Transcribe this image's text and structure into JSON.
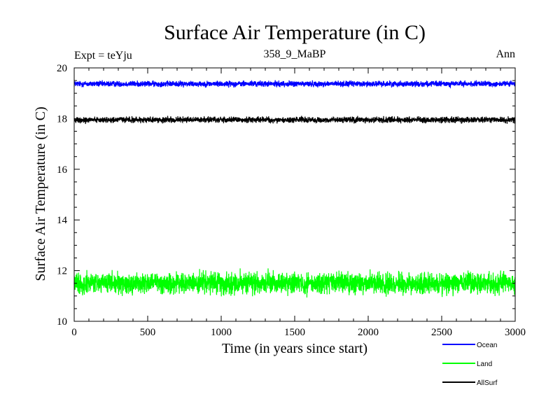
{
  "chart_data": {
    "type": "line",
    "title": "Surface Air Temperature (in C)",
    "subtitle_left": "Expt = teYju",
    "subtitle_center": "358_9_MaBP",
    "subtitle_right": "Ann",
    "xlabel": "Time (in years since start)",
    "ylabel": "Surface Air Temperature (in C)",
    "xlim": [
      0,
      3000
    ],
    "ylim": [
      10,
      20
    ],
    "x_ticks": [
      0,
      500,
      1000,
      1500,
      2000,
      2500,
      3000
    ],
    "y_ticks": [
      10,
      12,
      14,
      16,
      18,
      20
    ],
    "x_minor_step": 100,
    "y_minor_step": 0.5,
    "grid": false,
    "legend_position": "bottom-right",
    "series": [
      {
        "name": "Ocean",
        "color": "#0000ff",
        "mean": 19.37,
        "noise_amplitude": 0.06,
        "x": [
          0,
          3000
        ]
      },
      {
        "name": "Land",
        "color": "#00ff00",
        "mean": 11.5,
        "noise_amplitude": 0.22,
        "x": [
          0,
          3000
        ]
      },
      {
        "name": "AllSurf",
        "color": "#000000",
        "mean": 17.95,
        "noise_amplitude": 0.06,
        "x": [
          0,
          3000
        ]
      }
    ]
  }
}
